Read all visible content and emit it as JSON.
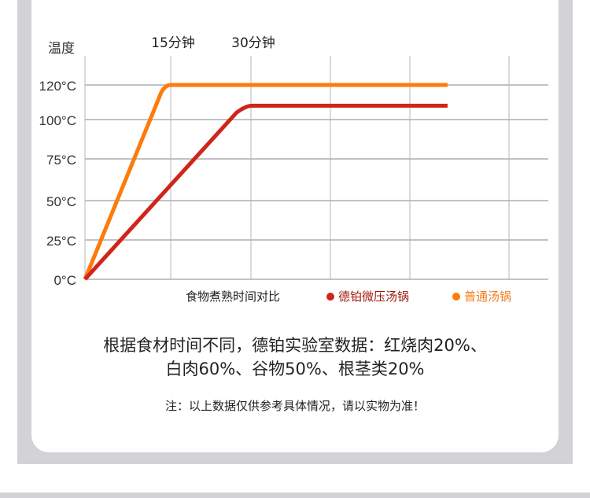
{
  "chart_data": {
    "type": "line",
    "ylabel": "温度",
    "y_ticks": [
      0,
      25,
      50,
      75,
      100,
      120
    ],
    "y_tick_labels": [
      "0°C",
      "25°C",
      "50°C",
      "75°C",
      "100°C",
      "120°C"
    ],
    "x_ticks": [
      0,
      15,
      30,
      45,
      60,
      78
    ],
    "x_tick_labels": {
      "15": "15分钟",
      "30": "30分钟"
    },
    "x_unit": "分钟",
    "grid": true,
    "legend_title": "食物煮熟时间对比",
    "legend_placement": "bottom-right",
    "series": [
      {
        "name": "德铂微压汤锅",
        "color": "#d0251a",
        "legend_color": "#a0180f",
        "points": [
          [
            0,
            0
          ],
          [
            28,
            104
          ],
          [
            30,
            108
          ],
          [
            67,
            108
          ]
        ]
      },
      {
        "name": "普通汤锅",
        "color": "#ff7a0a",
        "legend_color": "#f57c1c",
        "points": [
          [
            0,
            0
          ],
          [
            14,
            115
          ],
          [
            15,
            120
          ],
          [
            67,
            120
          ]
        ]
      }
    ]
  },
  "text": {
    "main_line1": "根据食材时间不同，德铂实验室数据：红烧肉20%、",
    "main_line2": "白肉60%、谷物50%、根茎类20%",
    "note": "注：以上数据仅供参考具体情况，请以实物为准！"
  }
}
